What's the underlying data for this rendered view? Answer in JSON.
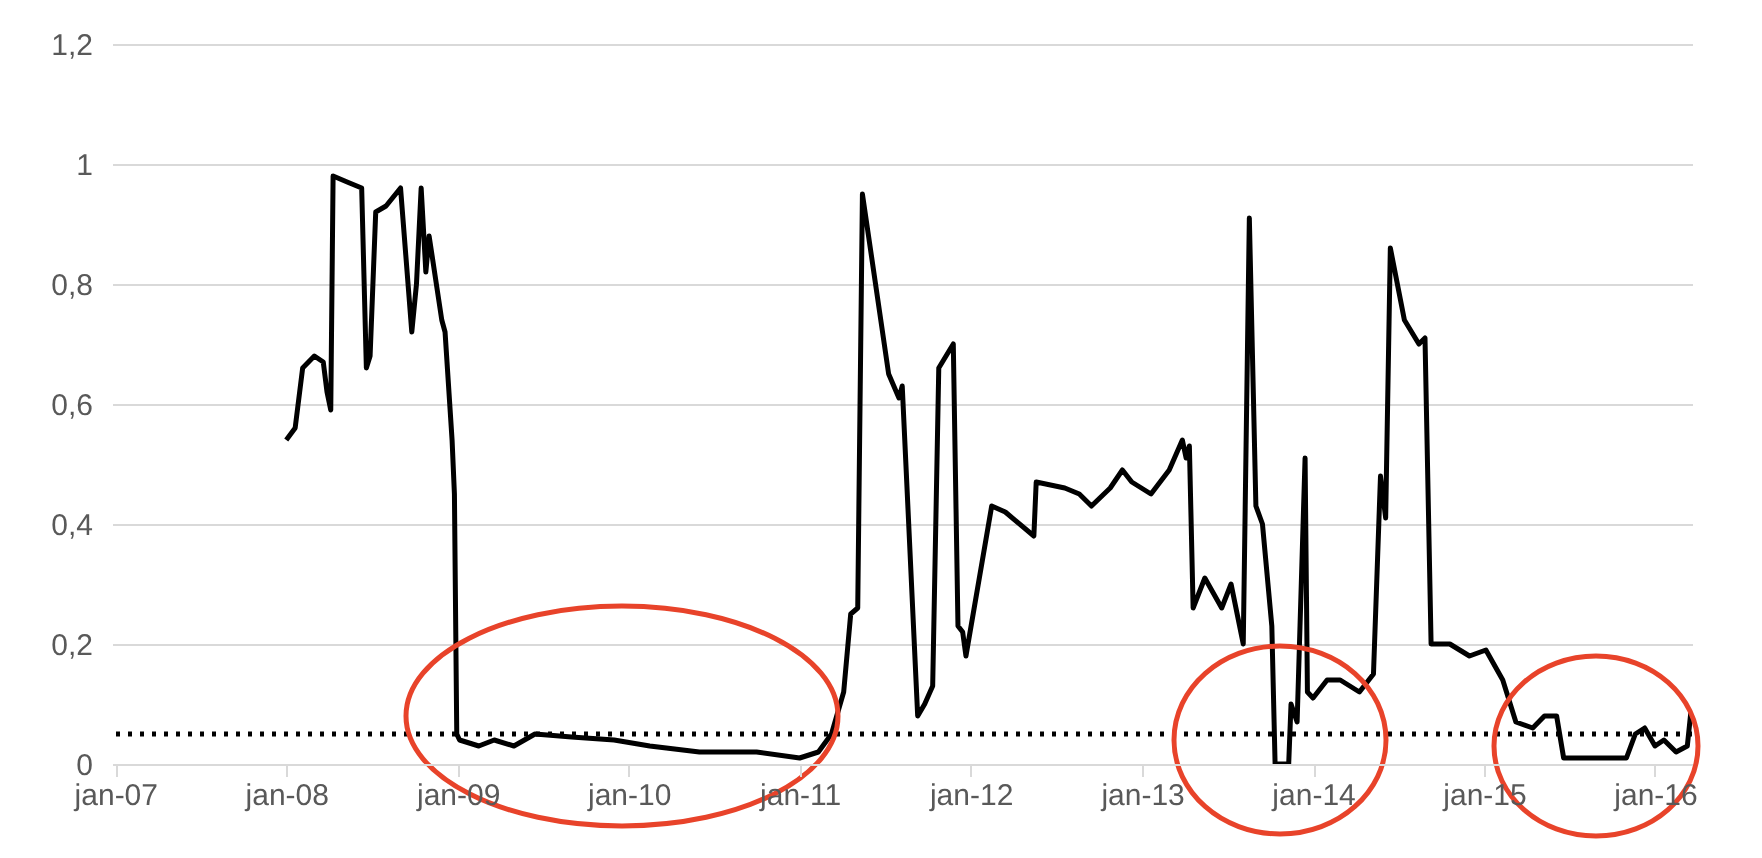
{
  "chart_data": {
    "type": "line",
    "x": [
      "2008-01-01",
      "2008-01-20",
      "2008-02-05",
      "2008-03-01",
      "2008-03-20",
      "2008-03-28",
      "2008-04-05",
      "2008-04-10",
      "2008-05-10",
      "2008-06-10",
      "2008-06-20",
      "2008-06-28",
      "2008-07-10",
      "2008-08-01",
      "2008-09-01",
      "2008-09-25",
      "2008-10-05",
      "2008-10-15",
      "2008-10-25",
      "2008-11-01",
      "2008-11-28",
      "2008-12-05",
      "2008-12-20",
      "2008-12-25",
      "2008-12-30",
      "2009-01-05",
      "2009-02-15",
      "2009-03-20",
      "2009-05-01",
      "2009-06-15",
      "2009-09-01",
      "2009-12-01",
      "2010-02-15",
      "2010-06-01",
      "2010-10-01",
      "2011-01-01",
      "2011-02-10",
      "2011-03-10",
      "2011-04-05",
      "2011-04-20",
      "2011-05-05",
      "2011-05-15",
      "2011-07-10",
      "2011-08-01",
      "2011-08-08",
      "2011-09-10",
      "2011-09-25",
      "2011-10-12",
      "2011-10-25",
      "2011-11-25",
      "2011-12-05",
      "2011-12-15",
      "2011-12-22",
      "2012-02-15",
      "2012-03-15",
      "2012-05-15",
      "2012-05-20",
      "2012-07-20",
      "2012-08-20",
      "2012-09-15",
      "2012-10-25",
      "2012-11-20",
      "2012-12-10",
      "2013-01-20",
      "2013-02-28",
      "2013-03-28",
      "2013-04-05",
      "2013-04-12",
      "2013-04-20",
      "2013-05-15",
      "2013-06-20",
      "2013-07-10",
      "2013-08-05",
      "2013-08-18",
      "2013-09-01",
      "2013-09-15",
      "2013-10-05",
      "2013-10-12",
      "2013-11-10",
      "2013-11-15",
      "2013-11-28",
      "2013-12-15",
      "2013-12-20",
      "2014-01-01",
      "2014-01-31",
      "2014-02-28",
      "2014-04-10",
      "2014-05-10",
      "2014-05-25",
      "2014-06-05",
      "2014-06-15",
      "2014-07-15",
      "2014-08-15",
      "2014-08-28",
      "2014-09-10",
      "2014-10-20",
      "2014-12-01",
      "2015-01-05",
      "2015-02-10",
      "2015-03-10",
      "2015-04-15",
      "2015-05-10",
      "2015-06-05",
      "2015-06-20",
      "2015-11-01",
      "2015-11-20",
      "2015-12-10",
      "2016-01-01",
      "2016-01-20",
      "2016-02-15",
      "2016-03-10",
      "2016-03-18"
    ],
    "values": [
      0.54,
      0.56,
      0.66,
      0.68,
      0.67,
      0.62,
      0.59,
      0.98,
      0.97,
      0.96,
      0.66,
      0.68,
      0.92,
      0.93,
      0.96,
      0.72,
      0.8,
      0.96,
      0.82,
      0.88,
      0.74,
      0.72,
      0.54,
      0.45,
      0.05,
      0.04,
      0.03,
      0.04,
      0.03,
      0.05,
      0.045,
      0.04,
      0.03,
      0.02,
      0.02,
      0.01,
      0.02,
      0.05,
      0.12,
      0.25,
      0.26,
      0.95,
      0.65,
      0.61,
      0.63,
      0.08,
      0.1,
      0.13,
      0.66,
      0.7,
      0.23,
      0.22,
      0.18,
      0.43,
      0.42,
      0.38,
      0.47,
      0.46,
      0.45,
      0.43,
      0.46,
      0.49,
      0.47,
      0.45,
      0.49,
      0.54,
      0.51,
      0.53,
      0.26,
      0.31,
      0.26,
      0.3,
      0.2,
      0.91,
      0.43,
      0.4,
      0.23,
      0.0,
      0.0,
      0.1,
      0.07,
      0.51,
      0.12,
      0.11,
      0.14,
      0.14,
      0.12,
      0.15,
      0.48,
      0.41,
      0.86,
      0.74,
      0.7,
      0.71,
      0.2,
      0.2,
      0.18,
      0.19,
      0.14,
      0.07,
      0.06,
      0.08,
      0.08,
      0.01,
      0.01,
      0.05,
      0.06,
      0.03,
      0.04,
      0.02,
      0.03,
      0.09
    ],
    "color": "#000000",
    "xlim": [
      "2006-12-25",
      "2016-03-20"
    ],
    "xticks": [
      {
        "value": "2007-01-01",
        "label": "jan-07"
      },
      {
        "value": "2008-01-01",
        "label": "jan-08"
      },
      {
        "value": "2009-01-01",
        "label": "jan-09"
      },
      {
        "value": "2010-01-01",
        "label": "jan-10"
      },
      {
        "value": "2011-01-01",
        "label": "jan-11"
      },
      {
        "value": "2012-01-01",
        "label": "jan-12"
      },
      {
        "value": "2013-01-01",
        "label": "jan-13"
      },
      {
        "value": "2014-01-01",
        "label": "jan-14"
      },
      {
        "value": "2015-01-01",
        "label": "jan-15"
      },
      {
        "value": "2016-01-01",
        "label": "jan-16"
      }
    ],
    "ylim": [
      0,
      1.2
    ],
    "yticks": [
      0,
      {
        "value": 0.2,
        "label": "0,2"
      },
      {
        "value": 0.4,
        "label": "0,4"
      },
      {
        "value": 0.6,
        "label": "0,6"
      },
      {
        "value": 0.8,
        "label": "0,8"
      },
      1,
      {
        "value": 1.2,
        "label": "1,2"
      }
    ],
    "grid": "y",
    "line_style": "solid",
    "ref_lines": [
      {
        "axis": "y",
        "value": 0.05,
        "color": "#000000",
        "line_style": "dotted"
      }
    ]
  }
}
